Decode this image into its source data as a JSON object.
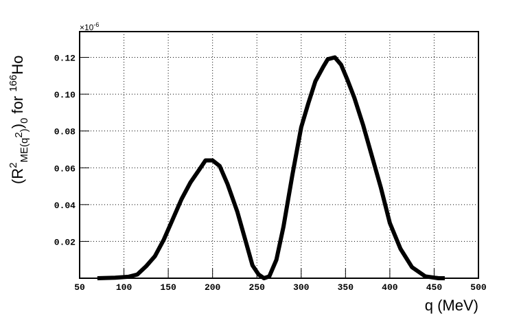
{
  "chart_data": {
    "type": "line",
    "xlabel": "q (MeV)",
    "ylabel_parts": [
      "(R",
      "2",
      "ME(q",
      "2",
      ")",
      ")",
      "0",
      " for ",
      "166",
      "Ho"
    ],
    "y_scale_base": "×10",
    "y_scale_exponent": "-6",
    "xlim": [
      50,
      500
    ],
    "xticks": [
      50,
      100,
      150,
      200,
      250,
      300,
      350,
      400,
      450,
      500
    ],
    "ylim": [
      0,
      0.134
    ],
    "yticks": [
      0.02,
      0.04,
      0.06,
      0.08,
      {
        "value": 0.1,
        "label": "0.10"
      },
      0.12
    ],
    "grid": true,
    "series": [
      {
        "color": "#000000",
        "x": [
          70,
          90,
          105,
          115,
          125,
          135,
          145,
          155,
          165,
          175,
          185,
          192,
          200,
          208,
          217,
          228,
          238,
          245,
          252,
          258,
          264,
          272,
          280,
          290,
          300,
          308,
          316,
          325,
          330,
          338,
          345,
          352,
          360,
          370,
          380,
          390,
          400,
          412,
          425,
          440,
          455,
          462
        ],
        "values": [
          0.0,
          0.0003,
          0.0008,
          0.002,
          0.0065,
          0.012,
          0.021,
          0.032,
          0.043,
          0.052,
          0.059,
          0.064,
          0.064,
          0.061,
          0.051,
          0.036,
          0.019,
          0.007,
          0.002,
          0.0,
          0.001,
          0.01,
          0.028,
          0.056,
          0.082,
          0.095,
          0.107,
          0.115,
          0.119,
          0.12,
          0.116,
          0.108,
          0.098,
          0.083,
          0.066,
          0.049,
          0.03,
          0.016,
          0.006,
          0.001,
          0.0,
          0.0
        ]
      }
    ]
  }
}
